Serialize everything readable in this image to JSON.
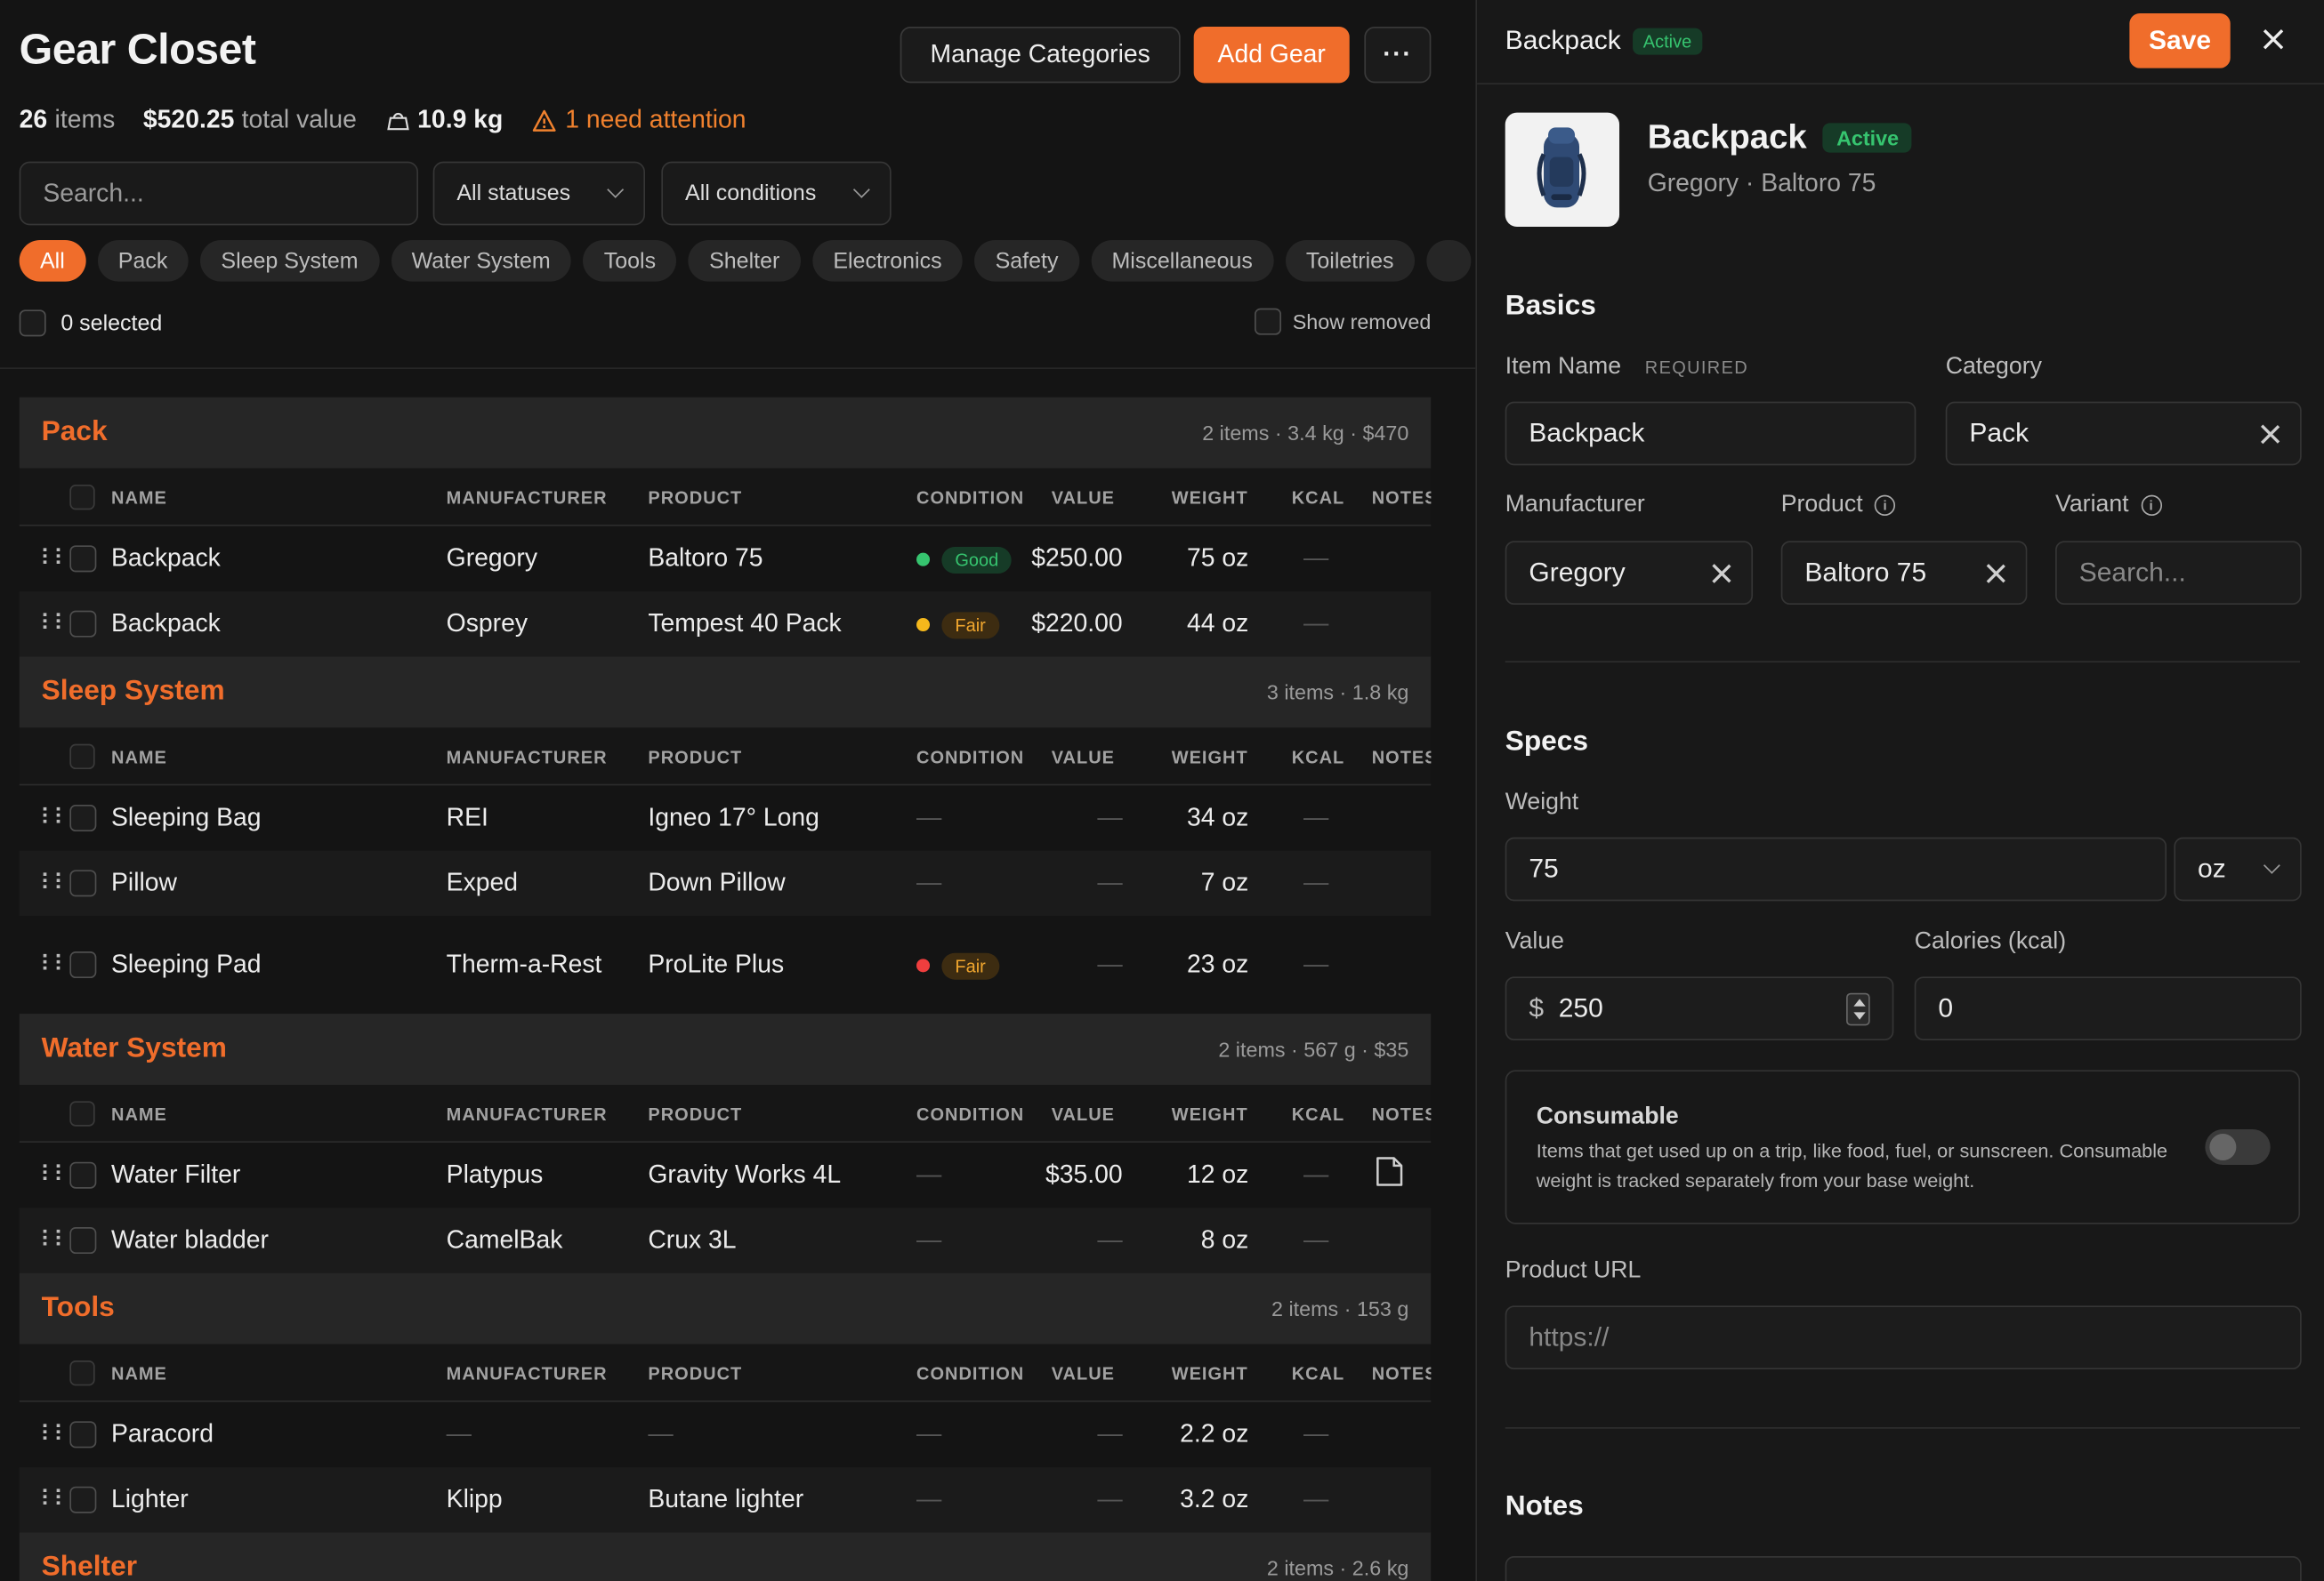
{
  "header": {
    "title": "Gear Closet",
    "manage_categories": "Manage Categories",
    "add_gear": "Add Gear",
    "more": "···"
  },
  "stats": {
    "items_count": "26",
    "items_label": "items",
    "total_value": "$520.25",
    "total_value_label": "total value",
    "weight": "10.9 kg",
    "attention": "1 need attention"
  },
  "filters": {
    "search_placeholder": "Search...",
    "status": "All statuses",
    "condition": "All conditions"
  },
  "chips": [
    "All",
    "Pack",
    "Sleep System",
    "Water System",
    "Tools",
    "Shelter",
    "Electronics",
    "Safety",
    "Miscellaneous",
    "Toiletries"
  ],
  "selection": {
    "selected": "0 selected",
    "show_removed": "Show removed"
  },
  "columns": {
    "name": "NAME",
    "manufacturer": "MANUFACTURER",
    "product": "PRODUCT",
    "condition": "CONDITION",
    "value": "VALUE",
    "weight": "WEIGHT",
    "kcal": "KCAL",
    "notes": "NOTES"
  },
  "groups": [
    {
      "title": "Pack",
      "meta": "2 items · 3.4 kg · $470",
      "rows": [
        {
          "name": "Backpack",
          "mfr": "Gregory",
          "prod": "Baltoro 75",
          "cond": "Good",
          "cond_color": "#36c46f",
          "value": "$250.00",
          "weight": "75 oz",
          "kcal": "—"
        },
        {
          "name": "Backpack",
          "mfr": "Osprey",
          "prod": "Tempest 40 Pack",
          "cond": "Fair",
          "cond_color": "#f5b81c",
          "value": "$220.00",
          "weight": "44 oz",
          "kcal": "—"
        }
      ]
    },
    {
      "title": "Sleep System",
      "meta": "3 items · 1.8 kg",
      "rows": [
        {
          "name": "Sleeping Bag",
          "mfr": "REI",
          "prod": "Igneo 17° Long",
          "cond": "—",
          "value": "—",
          "weight": "34 oz",
          "kcal": "—"
        },
        {
          "name": "Pillow",
          "mfr": "Exped",
          "prod": "Down Pillow",
          "cond": "—",
          "value": "—",
          "weight": "7 oz",
          "kcal": "—"
        },
        {
          "name": "Sleeping Pad",
          "mfr": "Therm-a-Rest",
          "prod": "ProLite Plus",
          "cond": "Fair",
          "cond_color": "#ef3e3e",
          "value": "—",
          "weight": "23 oz",
          "kcal": "—"
        }
      ]
    },
    {
      "title": "Water System",
      "meta": "2 items · 567 g · $35",
      "rows": [
        {
          "name": "Water Filter",
          "mfr": "Platypus",
          "prod": "Gravity Works 4L",
          "cond": "—",
          "value": "$35.00",
          "weight": "12 oz",
          "kcal": "—",
          "has_note": true
        },
        {
          "name": "Water bladder",
          "mfr": "CamelBak",
          "prod": "Crux 3L",
          "cond": "—",
          "value": "—",
          "weight": "8 oz",
          "kcal": "—"
        }
      ]
    },
    {
      "title": "Tools",
      "meta": "2 items · 153 g",
      "rows": [
        {
          "name": "Paracord",
          "mfr": "—",
          "prod": "—",
          "cond": "—",
          "value": "—",
          "weight": "2.2 oz",
          "kcal": "—"
        },
        {
          "name": "Lighter",
          "mfr": "Klipp",
          "prod": "Butane lighter",
          "cond": "—",
          "value": "—",
          "weight": "3.2 oz",
          "kcal": "—"
        }
      ]
    },
    {
      "title": "Shelter",
      "meta": "2 items · 2.6 kg",
      "rows": []
    }
  ],
  "panel": {
    "header_title": "Backpack",
    "status": "Active",
    "save": "Save",
    "item_name": "Backpack",
    "item_sub": "Gregory · Baltoro 75",
    "basics_title": "Basics",
    "item_name_label": "Item Name",
    "required": "REQUIRED",
    "category_label": "Category",
    "category_value": "Pack",
    "manufacturer_label": "Manufacturer",
    "manufacturer_value": "Gregory",
    "product_label": "Product",
    "product_value": "Baltoro 75",
    "variant_label": "Variant",
    "variant_placeholder": "Search...",
    "specs_title": "Specs",
    "weight_label": "Weight",
    "weight_value": "75",
    "weight_unit": "oz",
    "value_label": "Value",
    "value_currency": "$",
    "value_value": "250",
    "calories_label": "Calories (kcal)",
    "calories_value": "0",
    "consumable_title": "Consumable",
    "consumable_desc": "Items that get used up on a trip, like food, fuel, or sunscreen. Consumable weight is tracked separately from your base weight.",
    "consumable_on": false,
    "url_label": "Product URL",
    "url_placeholder": "https://",
    "notes_title": "Notes"
  }
}
